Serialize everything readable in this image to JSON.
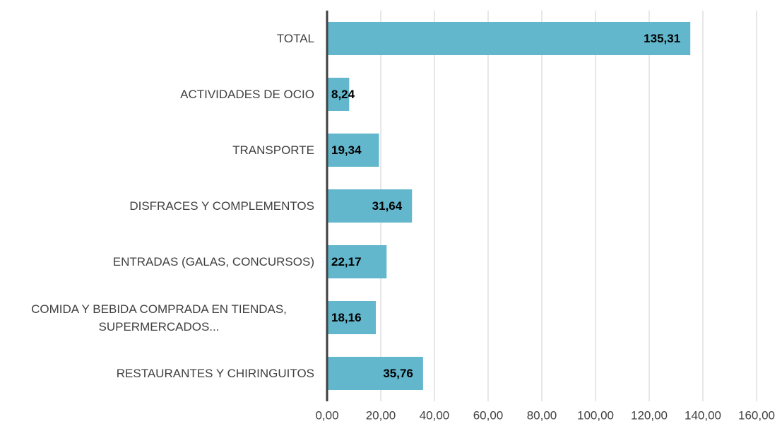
{
  "chart_data": {
    "type": "bar",
    "orientation": "horizontal",
    "categories": [
      "TOTAL",
      "ACTIVIDADES DE OCIO",
      "TRANSPORTE",
      "DISFRACES Y COMPLEMENTOS",
      "ENTRADAS (GALAS, CONCURSOS)",
      "COMIDA Y BEBIDA COMPRADA EN TIENDAS, SUPERMERCADOS...",
      "RESTAURANTES Y CHIRINGUITOS"
    ],
    "values": [
      135.31,
      8.24,
      19.34,
      31.64,
      22.17,
      18.16,
      35.76
    ],
    "value_labels": [
      "135,31",
      "8,24",
      "19,34",
      "31,64",
      "22,17",
      "18,16",
      "35,76"
    ],
    "color": "#62b7cd",
    "xlim": [
      0,
      160
    ],
    "xticks": [
      {
        "value": 0,
        "label": "0,00"
      },
      {
        "value": 20,
        "label": "20,00"
      },
      {
        "value": 40,
        "label": "40,00"
      },
      {
        "value": 60,
        "label": "60,00"
      },
      {
        "value": 80,
        "label": "80,00"
      },
      {
        "value": 100,
        "label": "100,00"
      },
      {
        "value": 120,
        "label": "120,00"
      },
      {
        "value": 140,
        "label": "140,00"
      },
      {
        "value": 160,
        "label": "160,00"
      }
    ],
    "grid": true
  }
}
